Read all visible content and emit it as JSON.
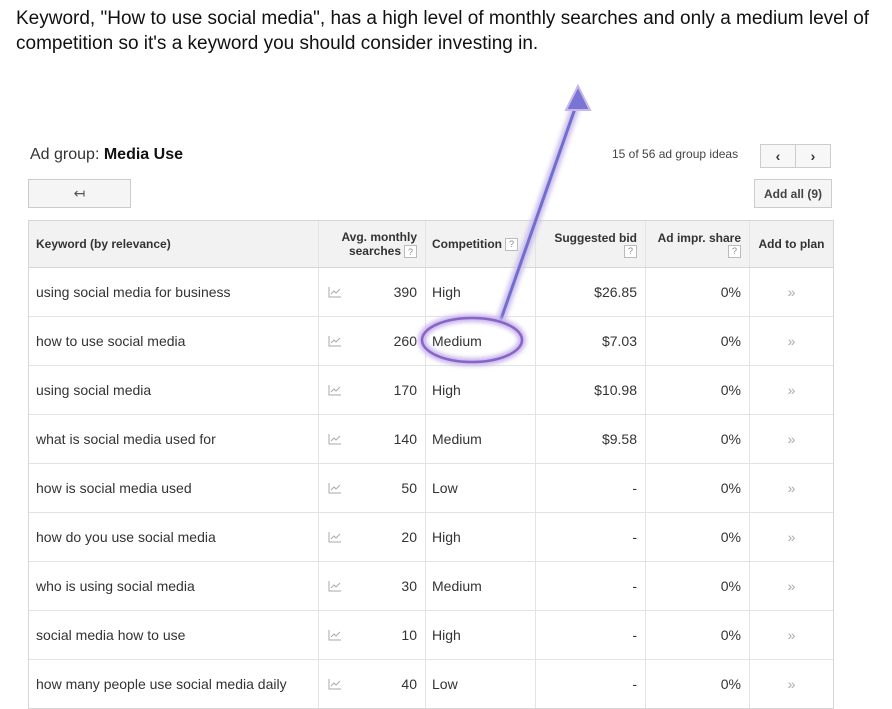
{
  "caption": "Keyword, \"How to use social media\", has a high level of monthly searches and only a medium level of competition so it's a keyword you should consider investing in.",
  "ad_group": {
    "prefix": "Ad group:",
    "name": "Media Use"
  },
  "pager": {
    "text": "15 of 56 ad group ideas",
    "prev_icon": "‹",
    "next_icon": "›"
  },
  "back_button": {
    "icon": "↤"
  },
  "add_all": {
    "label": "Add all (9)"
  },
  "headers": {
    "keyword": "Keyword (by relevance)",
    "avg_line1": "Avg. monthly",
    "avg_line2": "searches",
    "competition": "Competition",
    "bid": "Suggested bid",
    "impr": "Ad impr. share",
    "add": "Add to plan",
    "help": "?"
  },
  "rows": [
    {
      "keyword": "using social media for business",
      "searches": "390",
      "competition": "High",
      "bid": "$26.85",
      "impr": "0%",
      "add": "»"
    },
    {
      "keyword": "how to use social media",
      "searches": "260",
      "competition": "Medium",
      "bid": "$7.03",
      "impr": "0%",
      "add": "»"
    },
    {
      "keyword": "using social media",
      "searches": "170",
      "competition": "High",
      "bid": "$10.98",
      "impr": "0%",
      "add": "»"
    },
    {
      "keyword": "what is social media used for",
      "searches": "140",
      "competition": "Medium",
      "bid": "$9.58",
      "impr": "0%",
      "add": "»"
    },
    {
      "keyword": "how is social media used",
      "searches": "50",
      "competition": "Low",
      "bid": "-",
      "impr": "0%",
      "add": "»"
    },
    {
      "keyword": "how do you use social media",
      "searches": "20",
      "competition": "High",
      "bid": "-",
      "impr": "0%",
      "add": "»"
    },
    {
      "keyword": "who is using social media",
      "searches": "30",
      "competition": "Medium",
      "bid": "-",
      "impr": "0%",
      "add": "»"
    },
    {
      "keyword": "social media how to use",
      "searches": "10",
      "competition": "High",
      "bid": "-",
      "impr": "0%",
      "add": "»"
    },
    {
      "keyword": "how many people use social media daily",
      "searches": "40",
      "competition": "Low",
      "bid": "-",
      "impr": "0%",
      "add": "»"
    }
  ],
  "colors": {
    "annotation": "#8a63c9",
    "header_bg": "#f2f2f2"
  }
}
